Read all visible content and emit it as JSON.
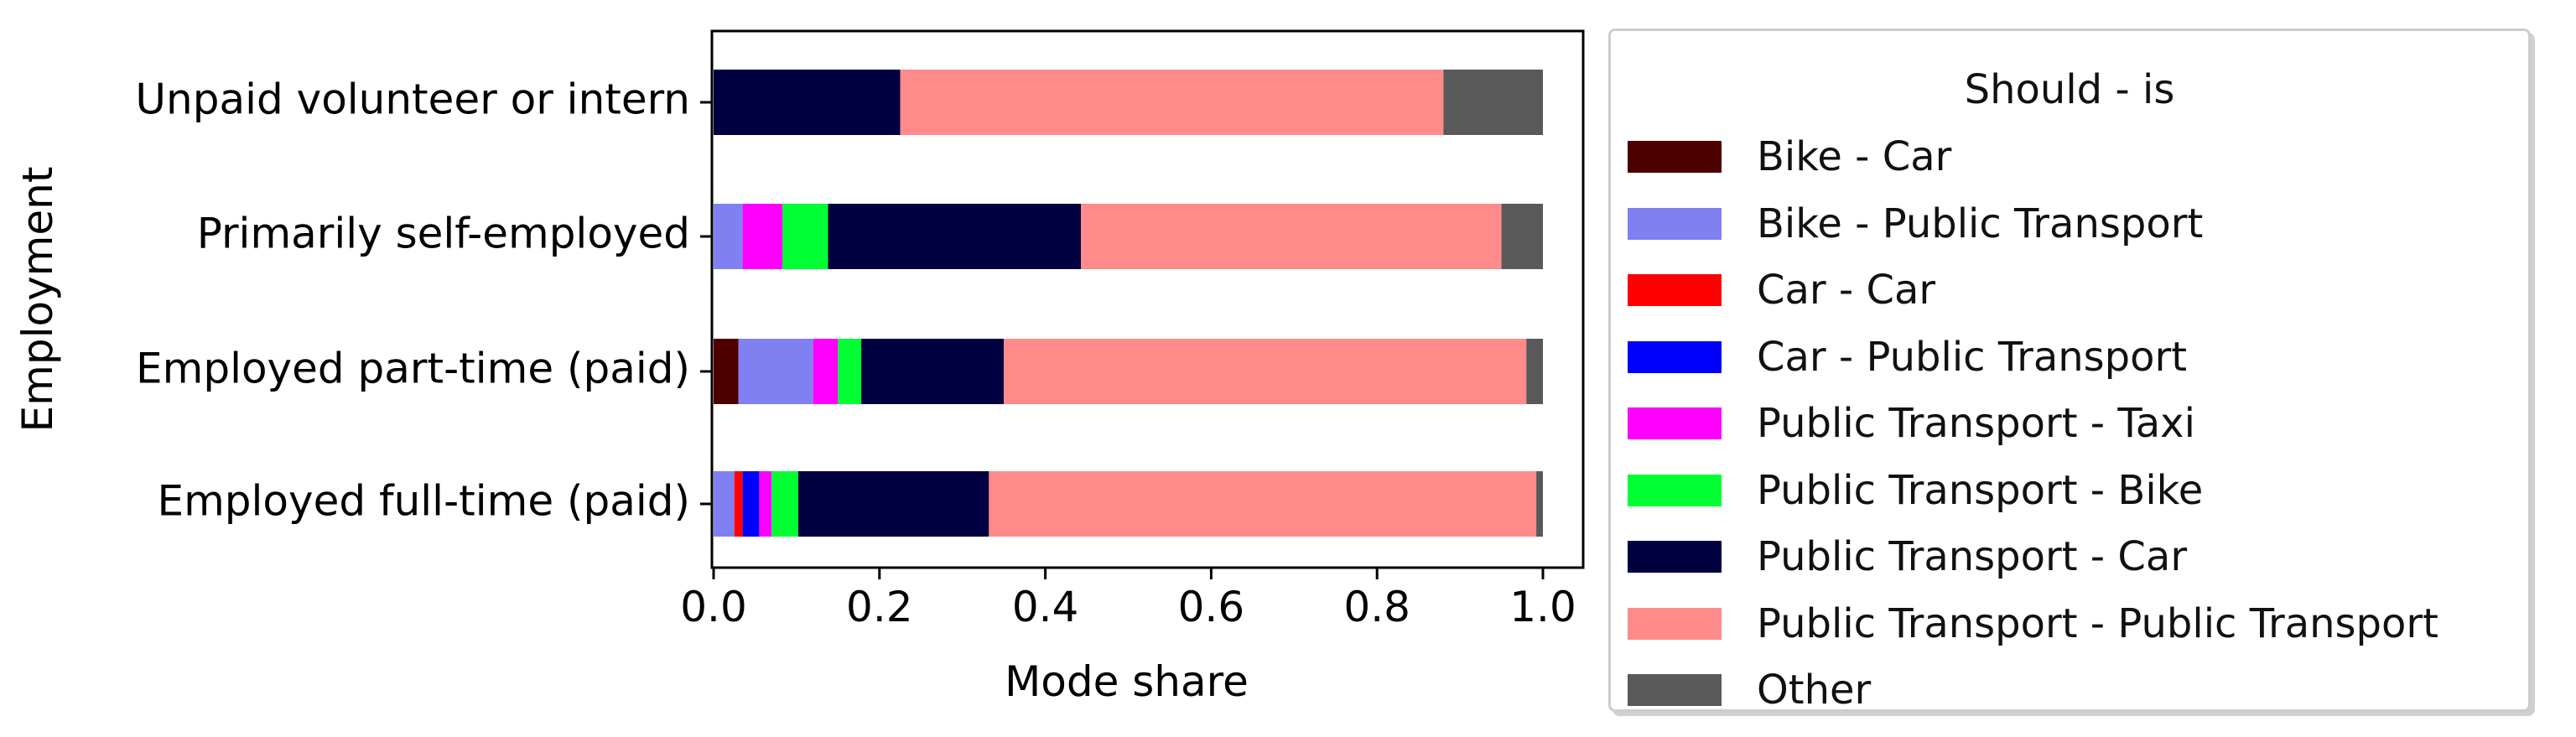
{
  "chart_data": {
    "type": "bar",
    "orientation": "horizontal",
    "stacked": true,
    "ylabel": "Employment",
    "xlabel": "Mode share",
    "xlim": [
      0.0,
      1.0
    ],
    "xticks": [
      "0.0",
      "0.2",
      "0.4",
      "0.6",
      "0.8",
      "1.0"
    ],
    "categories": [
      "Employed full-time (paid)",
      "Employed part-time (paid)",
      "Primarily self-employed",
      "Unpaid volunteer or intern"
    ],
    "series": [
      {
        "name": "Bike - Car",
        "color": "#4d0000",
        "values": [
          0.0,
          0.03,
          0.0,
          0.0
        ]
      },
      {
        "name": "Bike - Public Transport",
        "color": "#8080f2",
        "values": [
          0.025,
          0.09,
          0.035,
          0.0
        ]
      },
      {
        "name": "Car - Car",
        "color": "#ff0000",
        "values": [
          0.01,
          0.0,
          0.0,
          0.0
        ]
      },
      {
        "name": "Car - Public Transport",
        "color": "#0000ff",
        "values": [
          0.02,
          0.0,
          0.0,
          0.0
        ]
      },
      {
        "name": "Public Transport - Taxi",
        "color": "#ff00ff",
        "values": [
          0.015,
          0.03,
          0.048,
          0.0
        ]
      },
      {
        "name": "Public Transport - Bike",
        "color": "#00ff33",
        "values": [
          0.032,
          0.028,
          0.055,
          0.0
        ]
      },
      {
        "name": "Public Transport - Car",
        "color": "#000040",
        "values": [
          0.23,
          0.172,
          0.305,
          0.225
        ]
      },
      {
        "name": "Public Transport - Public Transport",
        "color": "#ff8a8a",
        "values": [
          0.66,
          0.63,
          0.507,
          0.655
        ]
      },
      {
        "name": "Other",
        "color": "#595959",
        "values": [
          0.008,
          0.02,
          0.05,
          0.12
        ]
      }
    ],
    "legend": {
      "title": "Should - is",
      "placement": "right, outside"
    }
  }
}
